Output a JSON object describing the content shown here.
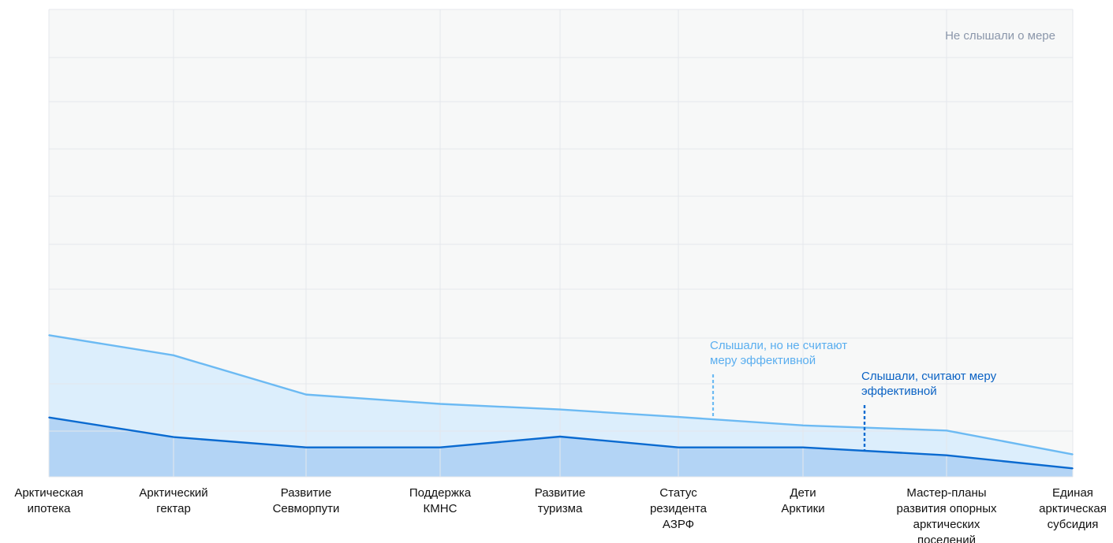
{
  "chart_data": {
    "type": "area",
    "categories": [
      [
        "Арктическая",
        "ипотека"
      ],
      [
        "Арктический",
        "гектар"
      ],
      [
        "Развитие",
        "Севморпути"
      ],
      [
        "Поддержка",
        "КМНС"
      ],
      [
        "Развитие",
        "туризма"
      ],
      [
        "Статус",
        "резидента",
        "АЗРФ"
      ],
      [
        "Дети",
        "Арктики"
      ],
      [
        "Мастер-планы",
        "развития опорных",
        "арктических",
        "поселений"
      ],
      [
        "Единая",
        "арктическая",
        "субсидия"
      ]
    ],
    "stacked": true,
    "series": [
      {
        "name": "Слышали, считают меру эффективной",
        "label_lines": [
          "Слышали, считают меру",
          "эффективной"
        ],
        "color": "#0a6ad0",
        "fill": "#b3d4f5",
        "values": [
          12.7,
          8.5,
          6.3,
          6.3,
          8.6,
          6.3,
          6.3,
          4.6,
          1.8
        ]
      },
      {
        "name": "Слышали, но не считают меру эффективной",
        "label_lines": [
          "Слышали, но не считают",
          "меру эффективной"
        ],
        "color": "#6cbaf3",
        "fill": "#dceefc",
        "values": [
          17.6,
          17.5,
          11.3,
          9.3,
          5.8,
          6.5,
          4.7,
          5.3,
          3.0
        ]
      },
      {
        "name": "Не слышали о мере",
        "color": "#8a96aa",
        "fill": "#f7f8f8",
        "values": [
          69.7,
          74.0,
          82.4,
          84.4,
          85.6,
          87.2,
          89.0,
          90.1,
          95.2
        ]
      }
    ],
    "ylim": [
      0,
      100
    ],
    "grid": true,
    "title": "",
    "xlabel": "",
    "ylabel": ""
  }
}
